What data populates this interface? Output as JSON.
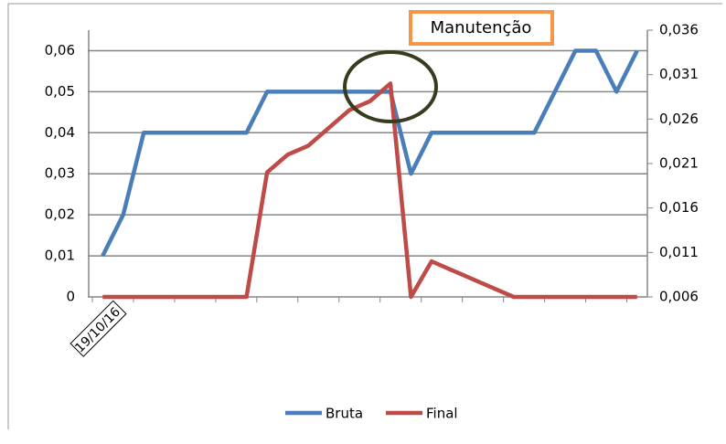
{
  "chart_data": {
    "type": "line",
    "categories": [
      "19/10/16",
      null,
      null,
      null,
      null,
      null,
      null,
      null,
      null,
      null,
      null,
      null,
      null,
      null,
      null,
      null,
      null,
      null,
      null,
      null,
      null,
      null,
      null,
      null,
      null,
      null,
      null
    ],
    "series": [
      {
        "name": "Bruta",
        "color": "#4a7ebb",
        "values": [
          0.01,
          0.02,
          0.04,
          0.04,
          0.04,
          0.04,
          0.04,
          0.04,
          0.05,
          0.05,
          0.05,
          0.05,
          0.05,
          0.05,
          0.05,
          0.03,
          0.04,
          0.04,
          0.04,
          0.04,
          0.04,
          0.04,
          0.05,
          0.06,
          0.06,
          0.05,
          0.06
        ]
      },
      {
        "name": "Final",
        "color": "#be4b48",
        "axis": "y2",
        "values": [
          0.006,
          0.006,
          0.006,
          0.006,
          0.006,
          0.006,
          0.006,
          0.006,
          0.02,
          0.022,
          0.023,
          0.025,
          0.027,
          0.028,
          0.03,
          0.006,
          0.01,
          0.009,
          0.008,
          0.007,
          0.006,
          0.006,
          0.006,
          0.006,
          0.006,
          0.006,
          0.006
        ]
      }
    ],
    "ylim": [
      0,
      0.065
    ],
    "yticks": [
      {
        "value": 0,
        "label": "0"
      },
      {
        "value": 0.01,
        "label": "0,01"
      },
      {
        "value": 0.02,
        "label": "0,02"
      },
      {
        "value": 0.03,
        "label": "0,03"
      },
      {
        "value": 0.04,
        "label": "0,04"
      },
      {
        "value": 0.05,
        "label": "0,05"
      },
      {
        "value": 0.06,
        "label": "0,06"
      }
    ],
    "y2lim": [
      0.006,
      0.036
    ],
    "y2ticks": [
      {
        "value": 0.006,
        "label": "0,006"
      },
      {
        "value": 0.011,
        "label": "0,011"
      },
      {
        "value": 0.016,
        "label": "0,016"
      },
      {
        "value": 0.021,
        "label": "0,021"
      },
      {
        "value": 0.026,
        "label": "0,026"
      },
      {
        "value": 0.031,
        "label": "0,031"
      },
      {
        "value": 0.036,
        "label": "0,036"
      }
    ],
    "grid": true,
    "legend": "bottom",
    "annotation": "Manutenção"
  }
}
